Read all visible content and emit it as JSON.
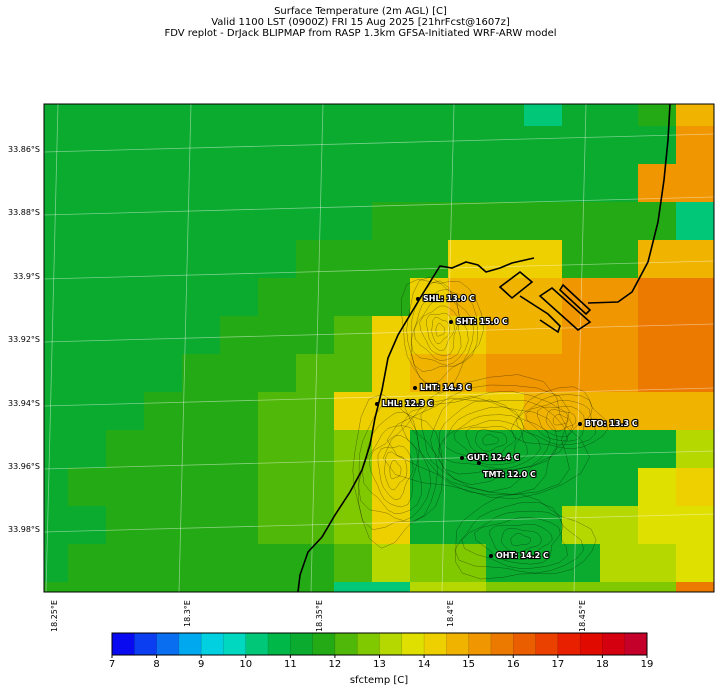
{
  "header": {
    "line1": "Surface Temperature (2m AGL) [C]",
    "line2": "Valid 1100 LST (0900Z) FRI 15 Aug 2025 [21hrFcst@1607z]",
    "line3": "FDV replot - DrJack BLIPMAP from RASP 1.3km GFSA-Initiated WRF-ARW model"
  },
  "map": {
    "lat_labels": [
      "33.86°S",
      "33.88°S",
      "33.9°S",
      "33.92°S",
      "33.94°S",
      "33.96°S",
      "33.98°S"
    ],
    "lon_labels": [
      "18.25°E",
      "18.3°E",
      "18.35°E",
      "18.4°E",
      "18.45°E"
    ],
    "stations": [
      {
        "code": "SHL",
        "label": "SHL: 13.0 C",
        "temp_c": 13.0
      },
      {
        "code": "SHT",
        "label": "SHT: 15.0 C",
        "temp_c": 15.0
      },
      {
        "code": "LHT",
        "label": "LHT: 14.3 C",
        "temp_c": 14.3
      },
      {
        "code": "LHL",
        "label": "LHL: 12.3 C",
        "temp_c": 12.3
      },
      {
        "code": "BTO",
        "label": "BTO: 13.3 C",
        "temp_c": 13.3
      },
      {
        "code": "GUT",
        "label": "GUT: 12.4 C",
        "temp_c": 12.4
      },
      {
        "code": "TMT",
        "label": "TMT: 12.0 C",
        "temp_c": 12.0
      },
      {
        "code": "OHT",
        "label": "OHT: 14.2 C",
        "temp_c": 14.2
      }
    ]
  },
  "colorbar": {
    "label": "sfctemp [C]",
    "tick_labels": [
      "7",
      "8",
      "9",
      "10",
      "11",
      "12",
      "13",
      "14",
      "15",
      "16",
      "17",
      "18",
      "19"
    ],
    "min": 7,
    "max": 19,
    "step": 0.5,
    "colors": [
      "#0a0af0",
      "#0a3ef0",
      "#0a6ef0",
      "#00a8f0",
      "#00d0e0",
      "#00d8c0",
      "#00c878",
      "#00b848",
      "#0aab2e",
      "#24aa14",
      "#50b808",
      "#80c800",
      "#b4d800",
      "#e0e000",
      "#eed000",
      "#f0b400",
      "#f09600",
      "#ec7a00",
      "#ea5e00",
      "#ea4000",
      "#e82000",
      "#e00a00",
      "#d40010",
      "#c4002a"
    ]
  }
}
